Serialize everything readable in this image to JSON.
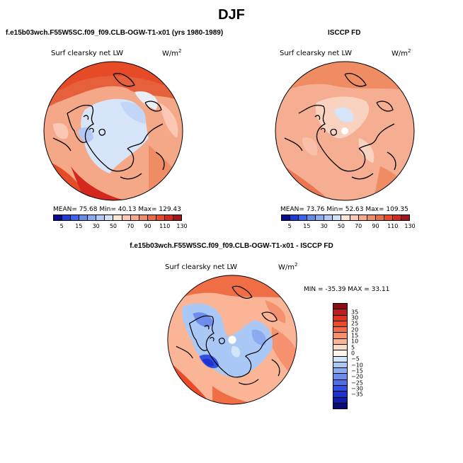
{
  "figure": {
    "season": "DJF",
    "left_title": "f.e15b03wch.F55W5SC.f09_f09.CLB-OGW-T1-x01 (yrs 1980-1989)",
    "right_title": "ISCCP FD",
    "diff_title": "f.e15b03wch.F55W5SC.f09_f09.CLB-OGW-T1-x01 - ISCCP FD"
  },
  "panels": {
    "model": {
      "variable": "Surf clearsky net LW",
      "units_base": "W/m",
      "units_exp": "2",
      "stats": "MEAN=  75.68   Min=  40.13   Max= 129.43"
    },
    "obs": {
      "variable": "Surf clearsky net LW",
      "units_base": "W/m",
      "units_exp": "2",
      "stats": "MEAN=  73.76   Min=  52.63   Max= 109.35"
    },
    "diff": {
      "variable": "Surf clearsky net LW",
      "units_base": "W/m",
      "units_exp": "2",
      "stats": "MIN = -35.39 MAX =  33.11"
    }
  },
  "colorbars": {
    "abs_ticks": [
      "5",
      "15",
      "30",
      "50",
      "70",
      "90",
      "110",
      "130"
    ],
    "abs_colors": [
      "#0a0a8c",
      "#1e3cd2",
      "#3c64e6",
      "#648ce6",
      "#8caaf0",
      "#b4c8f5",
      "#d2e1fa",
      "#fae6d2",
      "#fac8b4",
      "#f5aa8c",
      "#f08c64",
      "#e66e46",
      "#e64b28",
      "#d2281e",
      "#a0141e"
    ],
    "diff_ticks": [
      "35",
      "30",
      "25",
      "20",
      "15",
      "10",
      "5",
      "0",
      "−5",
      "−10",
      "−15",
      "−20",
      "−25",
      "−30",
      "−35"
    ],
    "diff_colors": [
      "#8c0a14",
      "#be1e1e",
      "#dc321e",
      "#ec4b28",
      "#f06e46",
      "#f5916e",
      "#fab496",
      "#fcdcc8",
      "#fff5ec",
      "#d2e6fa",
      "#aac8f5",
      "#8caaf0",
      "#6e8ceb",
      "#5070e6",
      "#3250e1",
      "#1e32d2",
      "#0f1eaa",
      "#0a0a78"
    ]
  }
}
